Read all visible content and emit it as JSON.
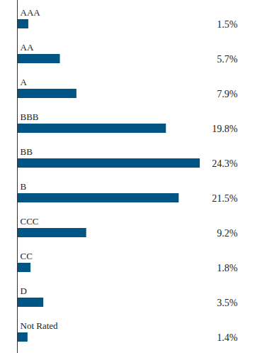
{
  "chart_data": {
    "type": "bar",
    "orientation": "horizontal",
    "categories": [
      "AAA",
      "AA",
      "A",
      "BBB",
      "BB",
      "B",
      "CCC",
      "CC",
      "D",
      "Not Rated"
    ],
    "values": [
      1.5,
      5.7,
      7.9,
      19.8,
      24.3,
      21.5,
      9.2,
      1.8,
      3.5,
      1.4
    ],
    "value_labels": [
      "1.5%",
      "5.7%",
      "7.9%",
      "19.8%",
      "24.3%",
      "21.5%",
      "9.2%",
      "1.8%",
      "3.5%",
      "1.4%"
    ],
    "color": "#005585",
    "xlim": [
      0,
      24.3
    ],
    "data_labels": true,
    "tick_labels": false,
    "grid": false
  }
}
